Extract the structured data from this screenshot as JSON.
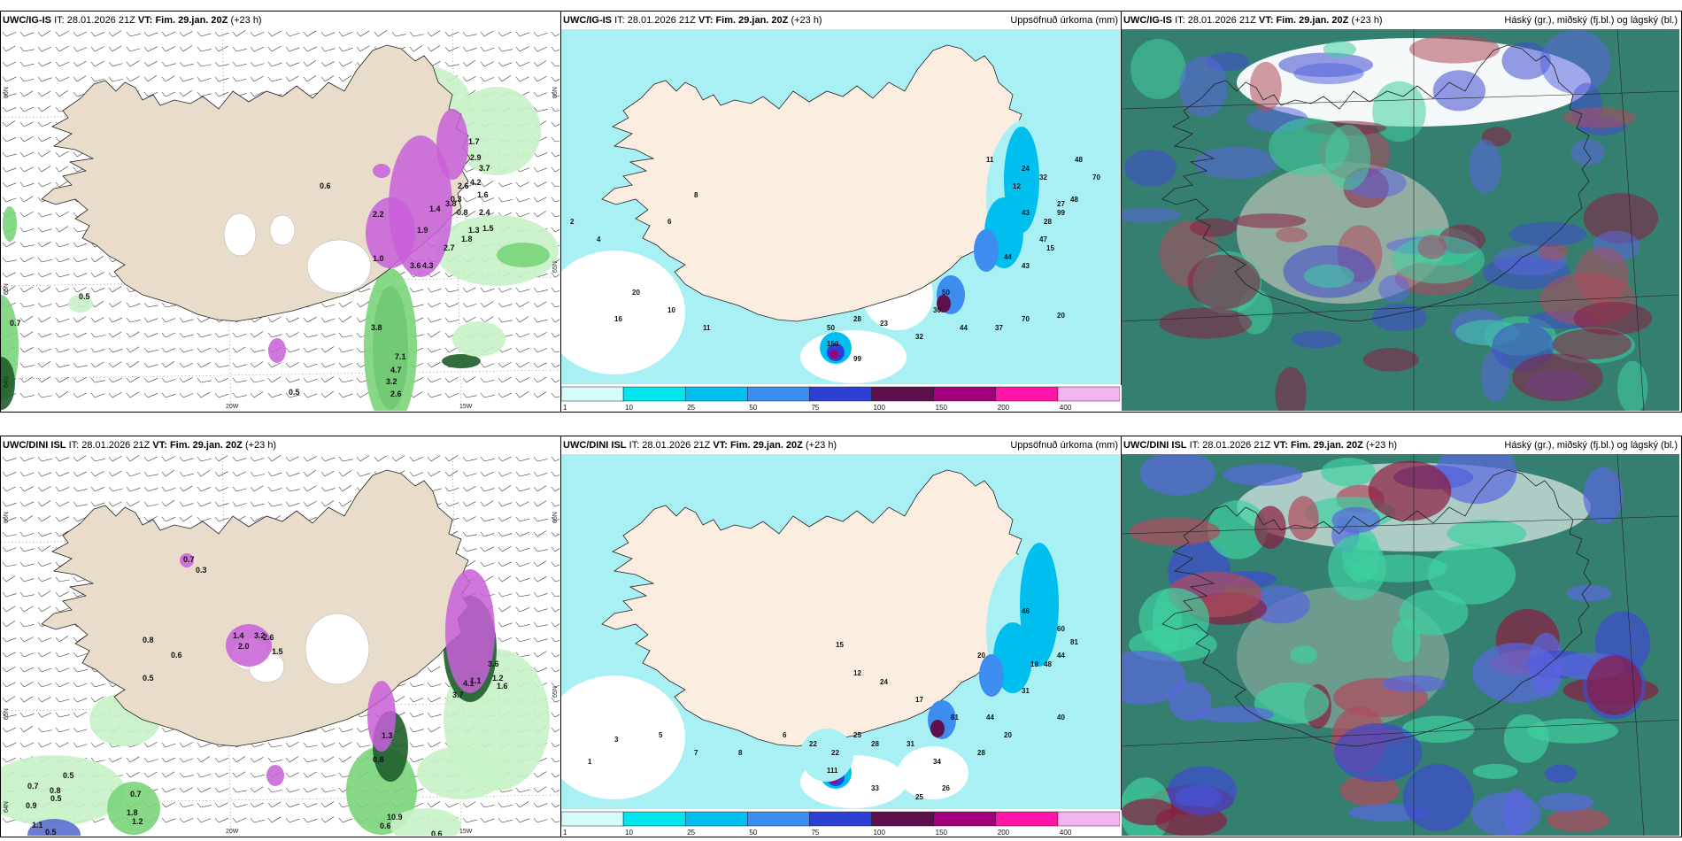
{
  "panels": [
    {
      "model": "UWC/IG-IS",
      "it_label": "IT:",
      "it_value": "28.01.2026 21Z",
      "vt_label": "VT:",
      "vt_value": "Fim. 29.jan. 20Z",
      "lead": "(+23 h)",
      "right_title": "",
      "lat_labels": [
        "66N",
        "65N",
        "64N"
      ],
      "lon_labels": [
        "20W",
        "15W"
      ],
      "values": [
        "0.5",
        "0.7",
        "0.5",
        "3.8",
        "7.1",
        "4.7",
        "3.2",
        "2.6",
        "3.8",
        "1.4",
        "1.9",
        "3.6",
        "4.3",
        "2.7",
        "2.2",
        "1.0",
        "2.6",
        "0.3",
        "0.8",
        "3.7",
        "2.9",
        "1.8",
        "2.4",
        "1.3",
        "1.5",
        "0.6",
        "1.7",
        "4.2",
        "1.6"
      ]
    },
    {
      "model": "UWC/IG-IS",
      "it_label": "IT:",
      "it_value": "28.01.2026 21Z",
      "vt_label": "VT:",
      "vt_value": "Fim. 29.jan. 20Z",
      "lead": "(+23 h)",
      "right_title": "Uppsöfnuð úrkoma (mm)",
      "values": [
        "1",
        "2",
        "3",
        "4",
        "5",
        "6",
        "7",
        "8",
        "9",
        "10",
        "11",
        "12",
        "14",
        "15",
        "16",
        "18",
        "19",
        "20",
        "21",
        "23",
        "24",
        "27",
        "28",
        "30",
        "32",
        "33",
        "37",
        "43",
        "44",
        "47",
        "48",
        "50",
        "70",
        "99",
        "150"
      ]
    },
    {
      "model": "UWC/IG-IS",
      "it_label": "IT:",
      "it_value": "28.01.2026 21Z",
      "vt_label": "VT:",
      "vt_value": "Fim. 29.jan. 20Z",
      "lead": "(+23 h)",
      "right_title": "Háský (gr.), miðský (fj.bl.) og lágský (bl.)"
    },
    {
      "model": "UWC/DINI ISL",
      "it_label": "IT:",
      "it_value": "28.01.2026 21Z",
      "vt_label": "VT:",
      "vt_value": "Fim. 29.jan. 20Z",
      "lead": "(+23 h)",
      "right_title": "",
      "lat_labels": [
        "66N",
        "65N",
        "64N"
      ],
      "lon_labels": [
        "20W",
        "15W"
      ],
      "values": [
        "0.7",
        "0.3",
        "0.8",
        "0.6",
        "0.5",
        "0.7",
        "0.5",
        "0.8",
        "0.9",
        "0.5",
        "0.7",
        "1.8",
        "1.2",
        "1.1",
        "0.5",
        "10.9",
        "0.6",
        "0.6",
        "0.8",
        "1.3",
        "3.6",
        "1.1",
        "1.2",
        "4.1",
        "1.6",
        "3.7",
        "3.2",
        "2.6",
        "1.4",
        "2.0",
        "1.5"
      ]
    },
    {
      "model": "UWC/DINI ISL",
      "it_label": "IT:",
      "it_value": "28.01.2026 21Z",
      "vt_label": "VT:",
      "vt_value": "Fim. 29.jan. 20Z",
      "lead": "(+23 h)",
      "right_title": "Uppsöfnuð úrkoma (mm)",
      "values": [
        "1",
        "2",
        "3",
        "4",
        "5",
        "6",
        "7",
        "8",
        "9",
        "10",
        "12",
        "14",
        "15",
        "16",
        "17",
        "18",
        "20",
        "22",
        "24",
        "25",
        "26",
        "28",
        "31",
        "32",
        "33",
        "34",
        "40",
        "44",
        "46",
        "48",
        "60",
        "81",
        "111"
      ]
    },
    {
      "model": "UWC/DINI ISL",
      "it_label": "IT:",
      "it_value": "28.01.2026 21Z",
      "vt_label": "VT:",
      "vt_value": "Fim. 29.jan. 20Z",
      "lead": "(+23 h)",
      "right_title": "Háský (gr.), miðský (fj.bl.) og lágský (bl.)"
    }
  ],
  "colorbar": {
    "ticks": [
      "1",
      "10",
      "25",
      "50",
      "75",
      "100",
      "150",
      "200",
      "400"
    ],
    "colors": [
      "#d6fbfb",
      "#00e5ee",
      "#00bfef",
      "#3d8cf0",
      "#2c3fd4",
      "#5d0f4e",
      "#a0007a",
      "#ff14a8",
      "#f5b3f0"
    ]
  },
  "colors": {
    "land": "#eadccb",
    "snow": "#ffffff",
    "precip_light": "#c8f2c8",
    "precip_mid": "#7ad47a",
    "precip_dark": "#1d5e2a",
    "precip_magenta": "#c85fd8",
    "accum_sea": "#a8f0f4",
    "accum_land": "#fbeee0",
    "cloud_high": "#2a7a62",
    "cloud_mid": "#3f4ad0",
    "cloud_low": "#8b1b3f"
  }
}
